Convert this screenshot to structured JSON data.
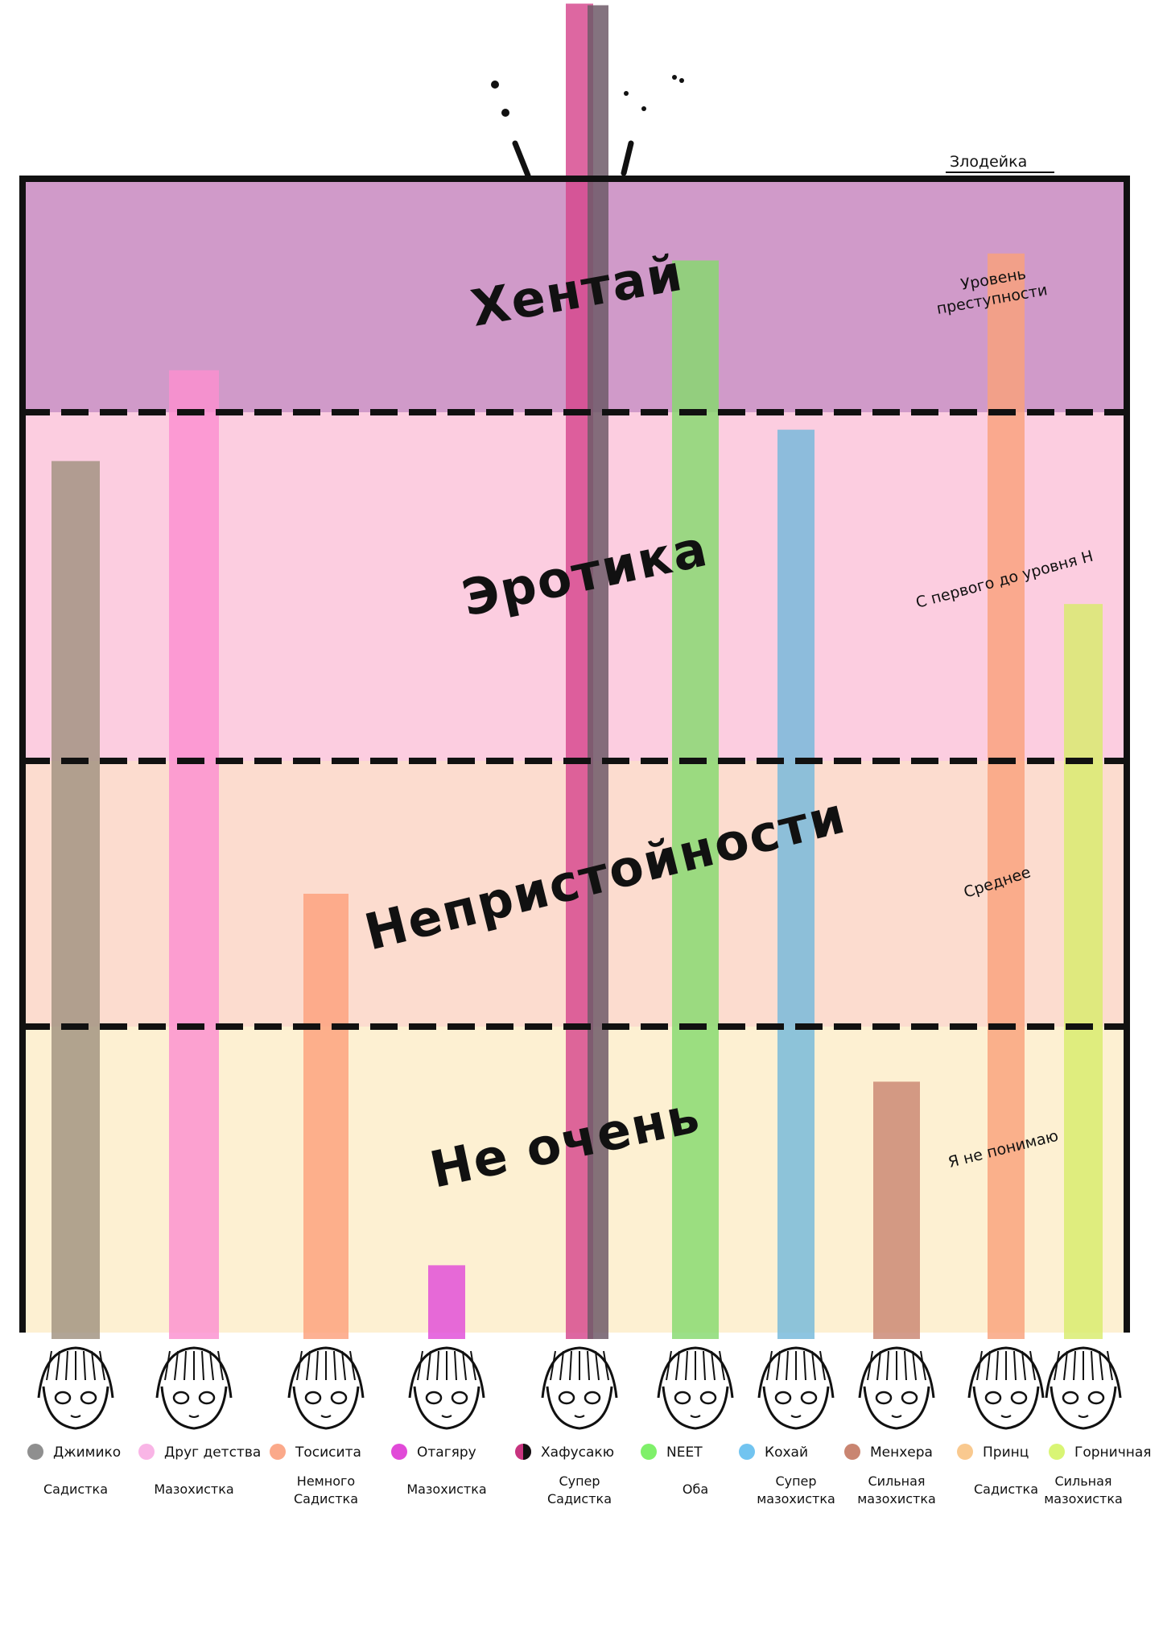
{
  "chart_data": {
    "type": "bar",
    "bands": [
      {
        "label": "Не очень",
        "color": "#fdf0d2",
        "from": 0,
        "to": 1
      },
      {
        "label": "Непристойности",
        "color": "#fcdccf",
        "from": 1,
        "to": 2
      },
      {
        "label": "Эротика",
        "color": "#fccde0",
        "from": 2,
        "to": 3
      },
      {
        "label": "Хентай",
        "color": "#d09ac9",
        "from": 3,
        "to": 4
      }
    ],
    "ylim": [
      0,
      4
    ],
    "side_notes": [
      {
        "text": "Я не понимаю",
        "level": 0.55
      },
      {
        "text": "Среднее",
        "level": 1.55
      },
      {
        "text": "С первого до уровня Н",
        "level": 2.55
      },
      {
        "text": "Уровень преступности",
        "level": 3.6
      }
    ],
    "top_note": "Злодейка",
    "series": [
      {
        "name": "Джимико",
        "trait": [
          "Садистка"
        ],
        "value": 2.86,
        "color": "#a0917f",
        "swatch": "#8f8f8f"
      },
      {
        "name": "Друг детства",
        "trait": [
          "Мазохистка"
        ],
        "value": 3.18,
        "color": "#fb8fcf",
        "swatch": "#f9b5e6"
      },
      {
        "name": "Тосисита",
        "trait": [
          "Немного",
          "Садистка"
        ],
        "value": 1.5,
        "color": "#fda07b",
        "swatch": "#fba98a"
      },
      {
        "name": "Отагяру",
        "trait": [
          "Мазохистка"
        ],
        "value": 0.22,
        "color": "#e14ad8",
        "swatch": "#e14ad8"
      },
      {
        "name": "Хафусакю",
        "trait": [
          "Супер",
          "Садистка"
        ],
        "value": 4.75,
        "color": "#d6468c",
        "swatch": "#c7347f"
      },
      {
        "name": "NEET",
        "trait": [
          "Оба"
        ],
        "value": 3.65,
        "color": "#85d96e",
        "swatch": "#7ff06a"
      },
      {
        "name": "Кохай",
        "trait": [
          "Супер",
          "мазохистка"
        ],
        "value": 2.95,
        "color": "#74b8da",
        "swatch": "#72c4f0"
      },
      {
        "name": "Менхера",
        "trait": [
          "Сильная",
          "мазохистка"
        ],
        "value": 0.82,
        "color": "#c98571",
        "swatch": "#c98571"
      },
      {
        "name": "Принц",
        "trait": [
          "Садистка"
        ],
        "value": 3.68,
        "color": "#f9a17b",
        "swatch": "#f9c98f"
      },
      {
        "name": "Горничная",
        "trait": [
          "Сильная",
          "мазохистка"
        ],
        "value": 2.45,
        "color": "#d8eb6b",
        "swatch": "#d9f575"
      }
    ]
  }
}
